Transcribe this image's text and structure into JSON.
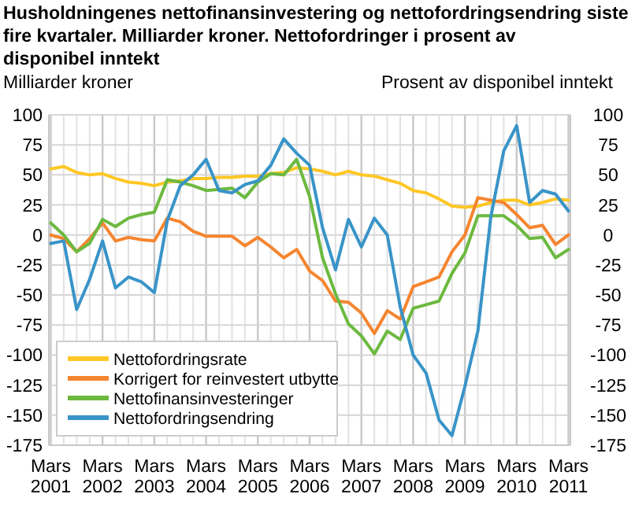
{
  "chart_data": {
    "type": "line",
    "title": "Husholdningenes nettofinansinvestering og nettofordringsendring siste fire kvartaler. Milliarder kroner. Nettofordringer i prosent av disponibel inntekt",
    "ylabel": "Milliarder kroner",
    "y2label": "Prosent av disponibel inntekt",
    "categories": [
      "Mars 2001",
      null,
      null,
      null,
      "Mars 2002",
      null,
      null,
      null,
      "Mars 2003",
      null,
      null,
      null,
      "Mars 2004",
      null,
      null,
      null,
      "Mars 2005",
      null,
      null,
      null,
      "Mars 2006",
      null,
      null,
      null,
      "Mars 2007",
      null,
      null,
      null,
      "Mars 2008",
      null,
      null,
      null,
      "Mars 2009",
      null,
      null,
      null,
      "Mars 2010",
      null,
      null,
      null,
      "Mars 2011"
    ],
    "ylim": [
      -175,
      100
    ],
    "yticks": [
      -175,
      -150,
      -125,
      -100,
      -75,
      -50,
      -25,
      0,
      25,
      50,
      75,
      100
    ],
    "y2lim": [
      -175,
      100
    ],
    "y2ticks": [
      -175,
      -150,
      -125,
      -100,
      -75,
      -50,
      -25,
      0,
      25,
      50,
      75,
      100
    ],
    "grid": true,
    "legend": "bottom left",
    "line_style": "solid",
    "series": [
      {
        "name": "Nettofordringsrate",
        "color": "#ffc726",
        "values": [
          55,
          57,
          52,
          50,
          51,
          47,
          44,
          43,
          41,
          44,
          45,
          47,
          47,
          48,
          48,
          49,
          49,
          51,
          52,
          56,
          55,
          53,
          50,
          53,
          50,
          49,
          46,
          43,
          37,
          35,
          30,
          24,
          23,
          24,
          27,
          29,
          29,
          25,
          27,
          30,
          29
        ]
      },
      {
        "name": "Korrigert for reinvestert utbytte",
        "color": "#f5852f",
        "values": [
          0,
          -3,
          -14,
          -3,
          10,
          -5,
          -2,
          -4,
          -5,
          14,
          11,
          3,
          -1,
          -1,
          -1,
          -9,
          -2,
          -10,
          -19,
          -12,
          -30,
          -38,
          -55,
          -56,
          -65,
          -82,
          -63,
          -70,
          -43,
          -39,
          -35,
          -14,
          0,
          31,
          29,
          27,
          17,
          6,
          8,
          -8,
          0
        ]
      },
      {
        "name": "Nettofinansinvesteringer",
        "color": "#6cb93f",
        "values": [
          10,
          0,
          -14,
          -7,
          13,
          7,
          14,
          17,
          19,
          46,
          44,
          41,
          37,
          38,
          39,
          31,
          44,
          51,
          50,
          63,
          32,
          -19,
          -49,
          -74,
          -84,
          -99,
          -80,
          -87,
          -61,
          -58,
          -55,
          -32,
          -15,
          16,
          16,
          16,
          8,
          -3,
          -2,
          -19,
          -12
        ]
      },
      {
        "name": "Nettofordringsendring",
        "color": "#3994c8",
        "values": [
          -7,
          -5,
          -62,
          -37,
          -5,
          -44,
          -35,
          -39,
          -48,
          12,
          41,
          50,
          63,
          37,
          35,
          42,
          45,
          58,
          80,
          68,
          58,
          6,
          -29,
          13,
          -10,
          14,
          0,
          -60,
          -100,
          -115,
          -154,
          -167,
          -126,
          -80,
          15,
          70,
          91,
          27,
          37,
          34,
          20
        ]
      }
    ]
  }
}
